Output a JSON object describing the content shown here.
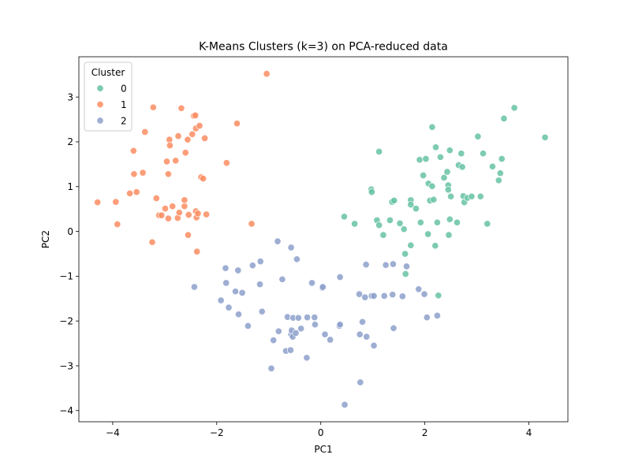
{
  "chart_data": {
    "type": "scatter",
    "title": "K-Means Clusters (k=3) on PCA-reduced data",
    "xlabel": "PC1",
    "ylabel": "PC2",
    "xlim": [
      -4.65,
      4.75
    ],
    "ylim": [
      -4.25,
      3.9
    ],
    "xticks": [
      -4,
      -2,
      0,
      2,
      4
    ],
    "yticks": [
      -4,
      -3,
      -2,
      -1,
      0,
      1,
      2,
      3
    ],
    "grid": false,
    "legend": {
      "title": "Cluster",
      "placement": "top-left"
    },
    "series": [
      {
        "name": "0",
        "color": "#66c2a5",
        "points": [
          [
            0.45,
            0.33
          ],
          [
            0.65,
            0.17
          ],
          [
            0.97,
            0.94
          ],
          [
            0.98,
            0.88
          ],
          [
            1.08,
            0.25
          ],
          [
            1.12,
            0.14
          ],
          [
            1.12,
            1.78
          ],
          [
            1.2,
            -0.08
          ],
          [
            1.33,
            0.25
          ],
          [
            1.37,
            0.66
          ],
          [
            1.41,
            0.69
          ],
          [
            1.52,
            0.18
          ],
          [
            1.6,
            0.05
          ],
          [
            1.62,
            -0.5
          ],
          [
            1.63,
            -0.95
          ],
          [
            1.73,
            -0.31
          ],
          [
            1.73,
            0.7
          ],
          [
            1.73,
            0.6
          ],
          [
            1.83,
            0.51
          ],
          [
            1.9,
            1.6
          ],
          [
            1.92,
            0.2
          ],
          [
            1.97,
            1.25
          ],
          [
            2.02,
            1.62
          ],
          [
            2.06,
            -0.06
          ],
          [
            2.07,
            1.07
          ],
          [
            2.1,
            0.69
          ],
          [
            2.14,
            2.33
          ],
          [
            2.14,
            1.01
          ],
          [
            2.17,
            0.71
          ],
          [
            2.2,
            -0.32
          ],
          [
            2.21,
            1.88
          ],
          [
            2.24,
            0.2
          ],
          [
            2.3,
            1.66
          ],
          [
            2.37,
            1.2
          ],
          [
            2.43,
            1.33
          ],
          [
            2.45,
            1.03
          ],
          [
            2.45,
            0.93
          ],
          [
            2.46,
            -0.08
          ],
          [
            2.48,
            0.27
          ],
          [
            2.48,
            1.81
          ],
          [
            2.5,
            0.78
          ],
          [
            2.62,
            0.2
          ],
          [
            2.65,
            1.48
          ],
          [
            2.7,
            1.74
          ],
          [
            2.72,
            1.44
          ],
          [
            2.74,
            0.79
          ],
          [
            2.76,
            0.65
          ],
          [
            2.82,
            0.75
          ],
          [
            2.9,
            0.78
          ],
          [
            3.02,
            2.12
          ],
          [
            3.07,
            0.78
          ],
          [
            3.12,
            1.74
          ],
          [
            3.2,
            0.17
          ],
          [
            3.3,
            1.45
          ],
          [
            3.42,
            1.14
          ],
          [
            3.45,
            1.3
          ],
          [
            3.48,
            1.62
          ],
          [
            3.52,
            2.52
          ],
          [
            3.72,
            2.76
          ],
          [
            4.31,
            2.1
          ],
          [
            2.26,
            -1.43
          ]
        ]
      },
      {
        "name": "1",
        "color": "#fc8d62",
        "points": [
          [
            -4.29,
            0.65
          ],
          [
            -3.94,
            0.66
          ],
          [
            -3.91,
            0.16
          ],
          [
            -3.67,
            0.85
          ],
          [
            -3.6,
            1.8
          ],
          [
            -3.59,
            1.28
          ],
          [
            -3.54,
            0.88
          ],
          [
            -3.42,
            1.31
          ],
          [
            -3.38,
            2.22
          ],
          [
            -3.24,
            -0.24
          ],
          [
            -3.22,
            2.77
          ],
          [
            -3.16,
            0.74
          ],
          [
            -3.11,
            0.36
          ],
          [
            -3.06,
            0.36
          ],
          [
            -2.99,
            0.51
          ],
          [
            -2.96,
            1.56
          ],
          [
            -2.93,
            1.28
          ],
          [
            -2.93,
            0.29
          ],
          [
            -2.91,
            2.05
          ],
          [
            -2.9,
            1.92
          ],
          [
            -2.85,
            0.56
          ],
          [
            -2.79,
            1.58
          ],
          [
            -2.75,
            0.3
          ],
          [
            -2.74,
            2.13
          ],
          [
            -2.72,
            0.42
          ],
          [
            -2.68,
            2.75
          ],
          [
            -2.62,
            0.56
          ],
          [
            -2.62,
            0.7
          ],
          [
            -2.6,
            1.76
          ],
          [
            -2.56,
            2.05
          ],
          [
            -2.55,
            -0.08
          ],
          [
            -2.54,
            0.37
          ],
          [
            -2.47,
            2.17
          ],
          [
            -2.44,
            2.58
          ],
          [
            -2.41,
            2.59
          ],
          [
            -2.4,
            2.3
          ],
          [
            -2.4,
            0.45
          ],
          [
            -2.39,
            0.31
          ],
          [
            -2.38,
            -0.45
          ],
          [
            -2.36,
            0.4
          ],
          [
            -2.33,
            2.36
          ],
          [
            -2.3,
            1.21
          ],
          [
            -2.26,
            1.18
          ],
          [
            -2.23,
            2.08
          ],
          [
            -2.2,
            0.38
          ],
          [
            -1.81,
            1.53
          ],
          [
            -1.61,
            2.41
          ],
          [
            -1.33,
            0.17
          ],
          [
            -1.04,
            3.52
          ]
        ]
      },
      {
        "name": "2",
        "color": "#8da0cb",
        "points": [
          [
            -2.43,
            -1.24
          ],
          [
            -1.92,
            -1.54
          ],
          [
            -1.83,
            -0.82
          ],
          [
            -1.82,
            -1.15
          ],
          [
            -1.77,
            -1.7
          ],
          [
            -1.64,
            -1.34
          ],
          [
            -1.59,
            -0.87
          ],
          [
            -1.58,
            -1.85
          ],
          [
            -1.51,
            -1.37
          ],
          [
            -1.4,
            -2.11
          ],
          [
            -1.31,
            -0.76
          ],
          [
            -1.17,
            -1.18
          ],
          [
            -1.16,
            -0.67
          ],
          [
            -1.13,
            -1.79
          ],
          [
            -0.95,
            -3.06
          ],
          [
            -0.91,
            -2.43
          ],
          [
            -0.83,
            -0.22
          ],
          [
            -0.81,
            -2.23
          ],
          [
            -0.74,
            -1.07
          ],
          [
            -0.67,
            -2.67
          ],
          [
            -0.64,
            -1.91
          ],
          [
            -0.58,
            -2.65
          ],
          [
            -0.57,
            -0.36
          ],
          [
            -0.57,
            -2.3
          ],
          [
            -0.56,
            -2.21
          ],
          [
            -0.54,
            -2.35
          ],
          [
            -0.53,
            -1.93
          ],
          [
            -0.48,
            -2.27
          ],
          [
            -0.46,
            -0.62
          ],
          [
            -0.43,
            -1.93
          ],
          [
            -0.38,
            -2.17
          ],
          [
            -0.27,
            -2.82
          ],
          [
            -0.26,
            -1.92
          ],
          [
            -0.17,
            -1.15
          ],
          [
            -0.12,
            -1.92
          ],
          [
            -0.11,
            -2.08
          ],
          [
            0.03,
            -1.26
          ],
          [
            0.04,
            -1.24
          ],
          [
            0.08,
            -2.3
          ],
          [
            0.18,
            -2.42
          ],
          [
            0.36,
            -2.11
          ],
          [
            0.37,
            -2.08
          ],
          [
            0.37,
            -1.02
          ],
          [
            0.46,
            -3.87
          ],
          [
            0.74,
            -1.4
          ],
          [
            0.75,
            -2.3
          ],
          [
            0.76,
            -3.37
          ],
          [
            0.8,
            -2.02
          ],
          [
            0.85,
            -1.47
          ],
          [
            0.87,
            -0.74
          ],
          [
            0.88,
            -2.35
          ],
          [
            0.98,
            -1.44
          ],
          [
            1.02,
            -1.44
          ],
          [
            1.02,
            -2.55
          ],
          [
            1.22,
            -1.44
          ],
          [
            1.25,
            -0.75
          ],
          [
            1.38,
            -1.41
          ],
          [
            1.39,
            -0.73
          ],
          [
            1.4,
            -2.16
          ],
          [
            1.57,
            -1.45
          ],
          [
            1.65,
            -0.78
          ],
          [
            1.88,
            -1.29
          ],
          [
            1.99,
            -1.4
          ],
          [
            2.04,
            -1.92
          ],
          [
            2.24,
            -1.88
          ]
        ]
      }
    ]
  }
}
